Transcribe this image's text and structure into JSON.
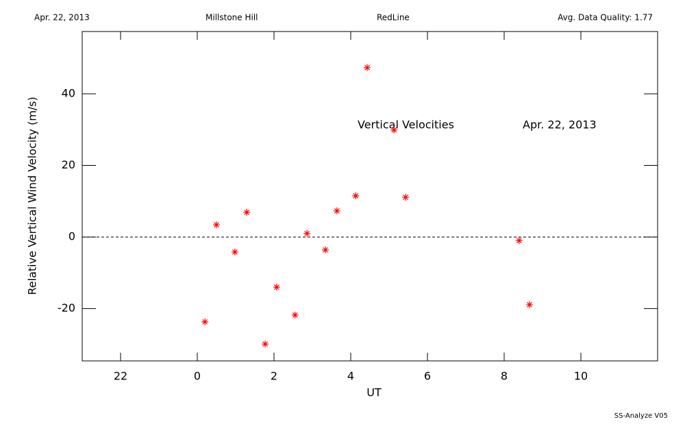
{
  "header": {
    "date": "Apr. 22, 2013",
    "site": "Millstone Hill",
    "instrument": "RedLine",
    "quality": "Avg. Data Quality: 1.77"
  },
  "footer": "SS-Analyze V05",
  "chart_data": {
    "type": "scatter",
    "xlabel": "UT",
    "ylabel": "Relative Vertical Wind Velocity (m/s)",
    "annotations": [
      "Vertical Velocities",
      "Apr. 22, 2013"
    ],
    "x": [
      0.2,
      0.5,
      0.98,
      1.29,
      1.77,
      2.07,
      2.55,
      2.86,
      3.34,
      3.64,
      4.13,
      4.43,
      5.13,
      5.43,
      8.39,
      8.66
    ],
    "series": [
      {
        "name": "Vertical Velocities",
        "color": "#ff0000",
        "values": [
          -23.7,
          3.4,
          -4.2,
          6.9,
          -29.9,
          -14.0,
          -21.8,
          1.0,
          -3.6,
          7.3,
          11.5,
          47.3,
          29.9,
          11.1,
          -1.0,
          -18.9
        ]
      }
    ],
    "xlim": [
      -3,
      12
    ],
    "xticks": [
      {
        "value": -2,
        "label": "22"
      },
      0,
      2,
      4,
      6,
      8,
      10
    ],
    "ylim": [
      -34.6,
      57.4
    ],
    "yticks": [
      -20,
      0,
      20,
      40
    ],
    "reference_line": 0
  }
}
